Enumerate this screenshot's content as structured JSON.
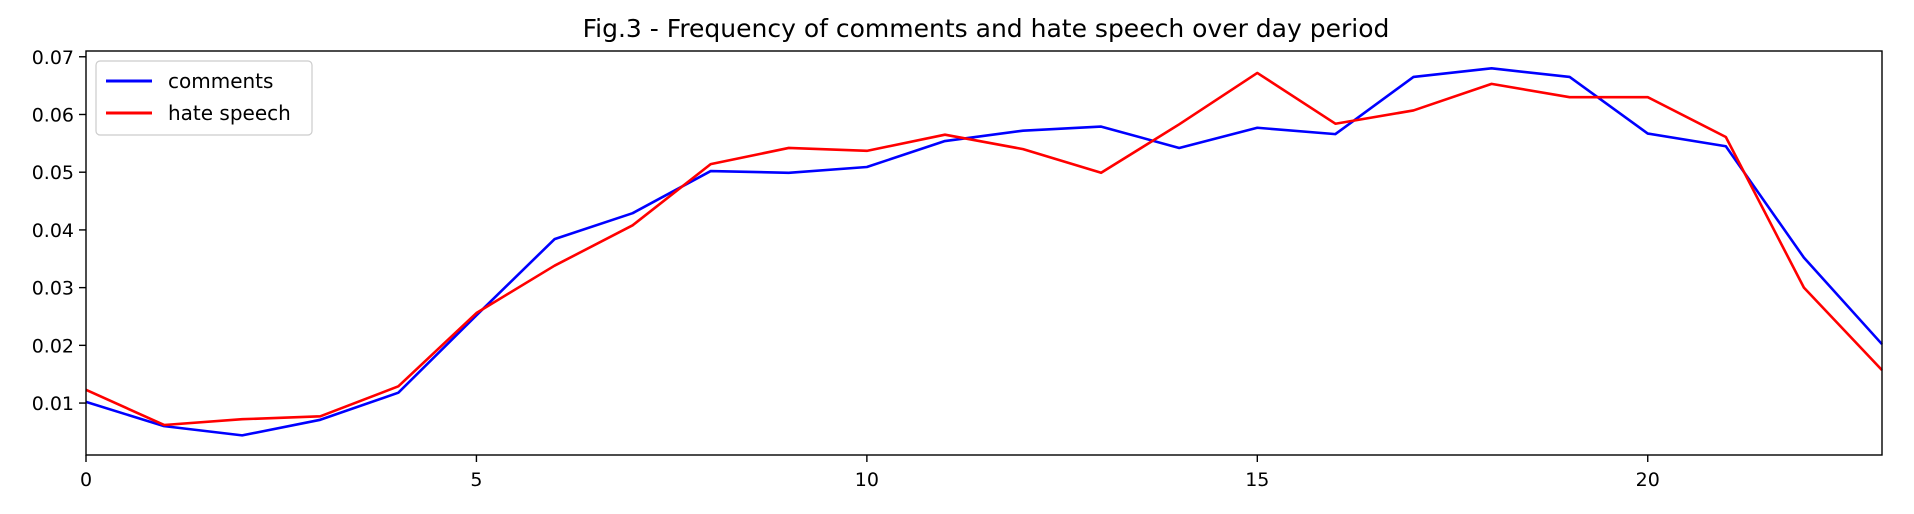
{
  "chart_data": {
    "type": "line",
    "title": "Fig.3 - Frequency of comments and hate speech over day period",
    "xlabel": "",
    "ylabel": "",
    "xlim": [
      0,
      23
    ],
    "ylim": [
      0.001,
      0.071
    ],
    "xticks": [
      0,
      5,
      10,
      15,
      20
    ],
    "xtick_labels": [
      "0",
      "5",
      "10",
      "15",
      "20"
    ],
    "yticks": [
      0.01,
      0.02,
      0.03,
      0.04,
      0.05,
      0.06,
      0.07
    ],
    "ytick_labels": [
      "0.01",
      "0.02",
      "0.03",
      "0.04",
      "0.05",
      "0.06",
      "0.07"
    ],
    "grid": false,
    "legend_position": "top-left",
    "x": [
      0,
      1,
      2,
      3,
      4,
      5,
      6,
      7,
      8,
      9,
      10,
      11,
      12,
      13,
      14,
      15,
      16,
      17,
      18,
      19,
      20,
      21,
      22,
      23
    ],
    "series": [
      {
        "name": "comments",
        "color": "#0000ff",
        "values": [
          0.0102,
          0.006,
          0.0044,
          0.0071,
          0.0118,
          0.0252,
          0.0384,
          0.0429,
          0.0502,
          0.0499,
          0.0509,
          0.0554,
          0.0572,
          0.0579,
          0.0542,
          0.0577,
          0.0566,
          0.0665,
          0.068,
          0.0665,
          0.0567,
          0.0545,
          0.0352,
          0.0202
        ]
      },
      {
        "name": "hate speech",
        "color": "#ff0000",
        "values": [
          0.0123,
          0.0062,
          0.0072,
          0.0077,
          0.0129,
          0.0256,
          0.0338,
          0.0408,
          0.0514,
          0.0542,
          0.0537,
          0.0565,
          0.054,
          0.0499,
          0.0583,
          0.0672,
          0.0584,
          0.0607,
          0.0653,
          0.063,
          0.063,
          0.0561,
          0.03,
          0.0157
        ]
      }
    ]
  }
}
